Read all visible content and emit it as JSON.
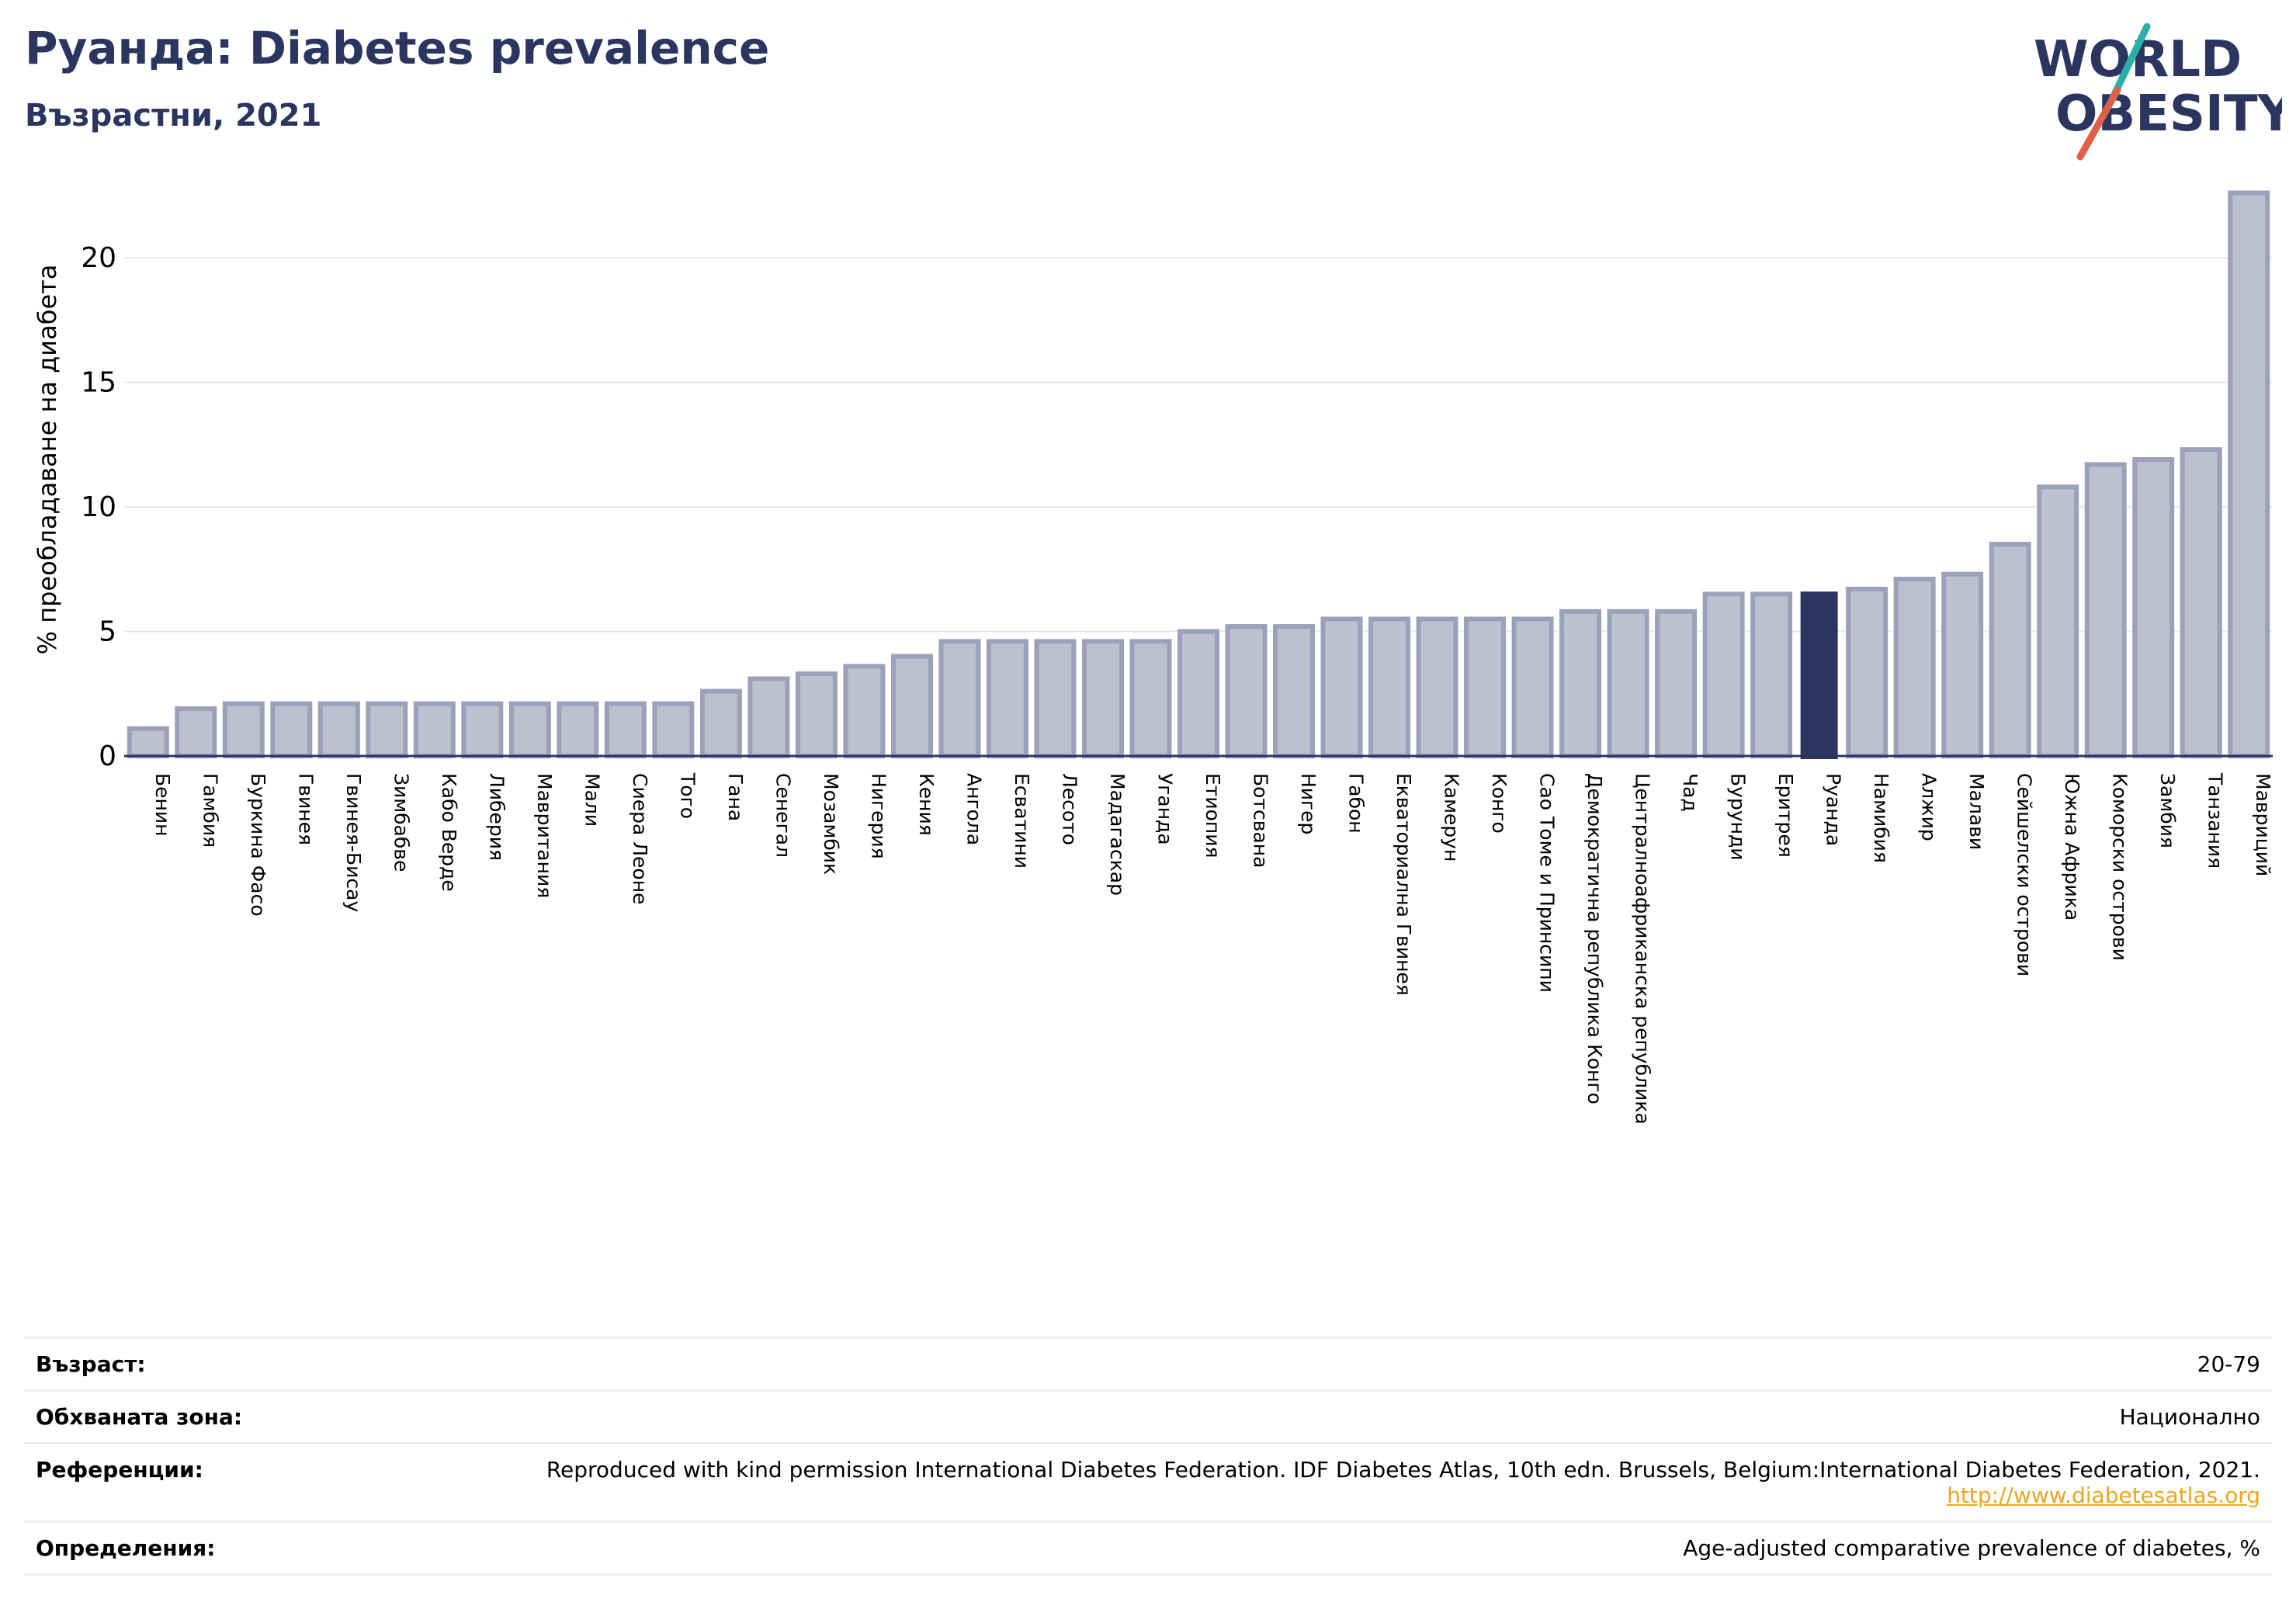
{
  "header": {
    "title": "Руанда: Diabetes prevalence",
    "subtitle": "Възрастни, 2021"
  },
  "logo": {
    "line1": "WORLD",
    "line2": "OBESITY",
    "colors": {
      "text": "#2a3560",
      "slash_teal": "#2bb0a8",
      "slash_red": "#e0604a"
    }
  },
  "colors": {
    "bar_fill": "#bcc0cf",
    "bar_stroke": "#9ba1b9",
    "highlight": "#2a3560",
    "grid": "#e6e8ee"
  },
  "chart_data": {
    "type": "bar",
    "title": "Руанда: Diabetes prevalence",
    "subtitle": "Възрастни, 2021",
    "xlabel": "",
    "ylabel": "% преобладаване на диабета",
    "ylim": [
      0,
      23
    ],
    "yticks": [
      0,
      5,
      10,
      15,
      20
    ],
    "grid": true,
    "highlight_category": "Руанда",
    "categories": [
      "Бенин",
      "Гамбия",
      "Буркина Фасо",
      "Гвинея",
      "Гвинея-Бисау",
      "Зимбабве",
      "Кабо Верде",
      "Либерия",
      "Мавритания",
      "Мали",
      "Сиера Леоне",
      "Того",
      "Гана",
      "Сенегал",
      "Мозамбик",
      "Нигерия",
      "Кения",
      "Ангола",
      "Есватини",
      "Лесото",
      "Мадагаскар",
      "Уганда",
      "Етиопия",
      "Ботсвана",
      "Нигер",
      "Габон",
      "Екваториална Гвинея",
      "Камерун",
      "Конго",
      "Сао Томе и Принсипи",
      "Демократична република Конго",
      "Централноафриканска република",
      "Чад",
      "Бурунди",
      "Еритрея",
      "Руанда",
      "Намибия",
      "Алжир",
      "Малави",
      "Сейшелски острови",
      "Южна Африка",
      "Коморски острови",
      "Замбия",
      "Танзания",
      "Мавриций"
    ],
    "values": [
      1.1,
      1.9,
      2.1,
      2.1,
      2.1,
      2.1,
      2.1,
      2.1,
      2.1,
      2.1,
      2.1,
      2.1,
      2.6,
      3.1,
      3.3,
      3.6,
      4.0,
      4.6,
      4.6,
      4.6,
      4.6,
      4.6,
      5.0,
      5.2,
      5.2,
      5.5,
      5.5,
      5.5,
      5.5,
      5.5,
      5.8,
      5.8,
      5.8,
      6.5,
      6.5,
      6.6,
      6.7,
      7.1,
      7.3,
      8.5,
      10.8,
      11.7,
      11.9,
      12.3,
      22.6
    ]
  },
  "info": [
    {
      "label": "Възраст:",
      "value": "20-79"
    },
    {
      "label": "Обхваната зона:",
      "value": "Национално"
    },
    {
      "label": "Референции:",
      "value": "Reproduced with kind permission International Diabetes Federation.  IDF Diabetes Atlas, 10th edn. Brussels, Belgium:International Diabetes Federation, 2021.",
      "link": "http://www.diabetesatlas.org"
    },
    {
      "label": "Определения:",
      "value": "Age-adjusted comparative prevalence of diabetes, %"
    }
  ]
}
